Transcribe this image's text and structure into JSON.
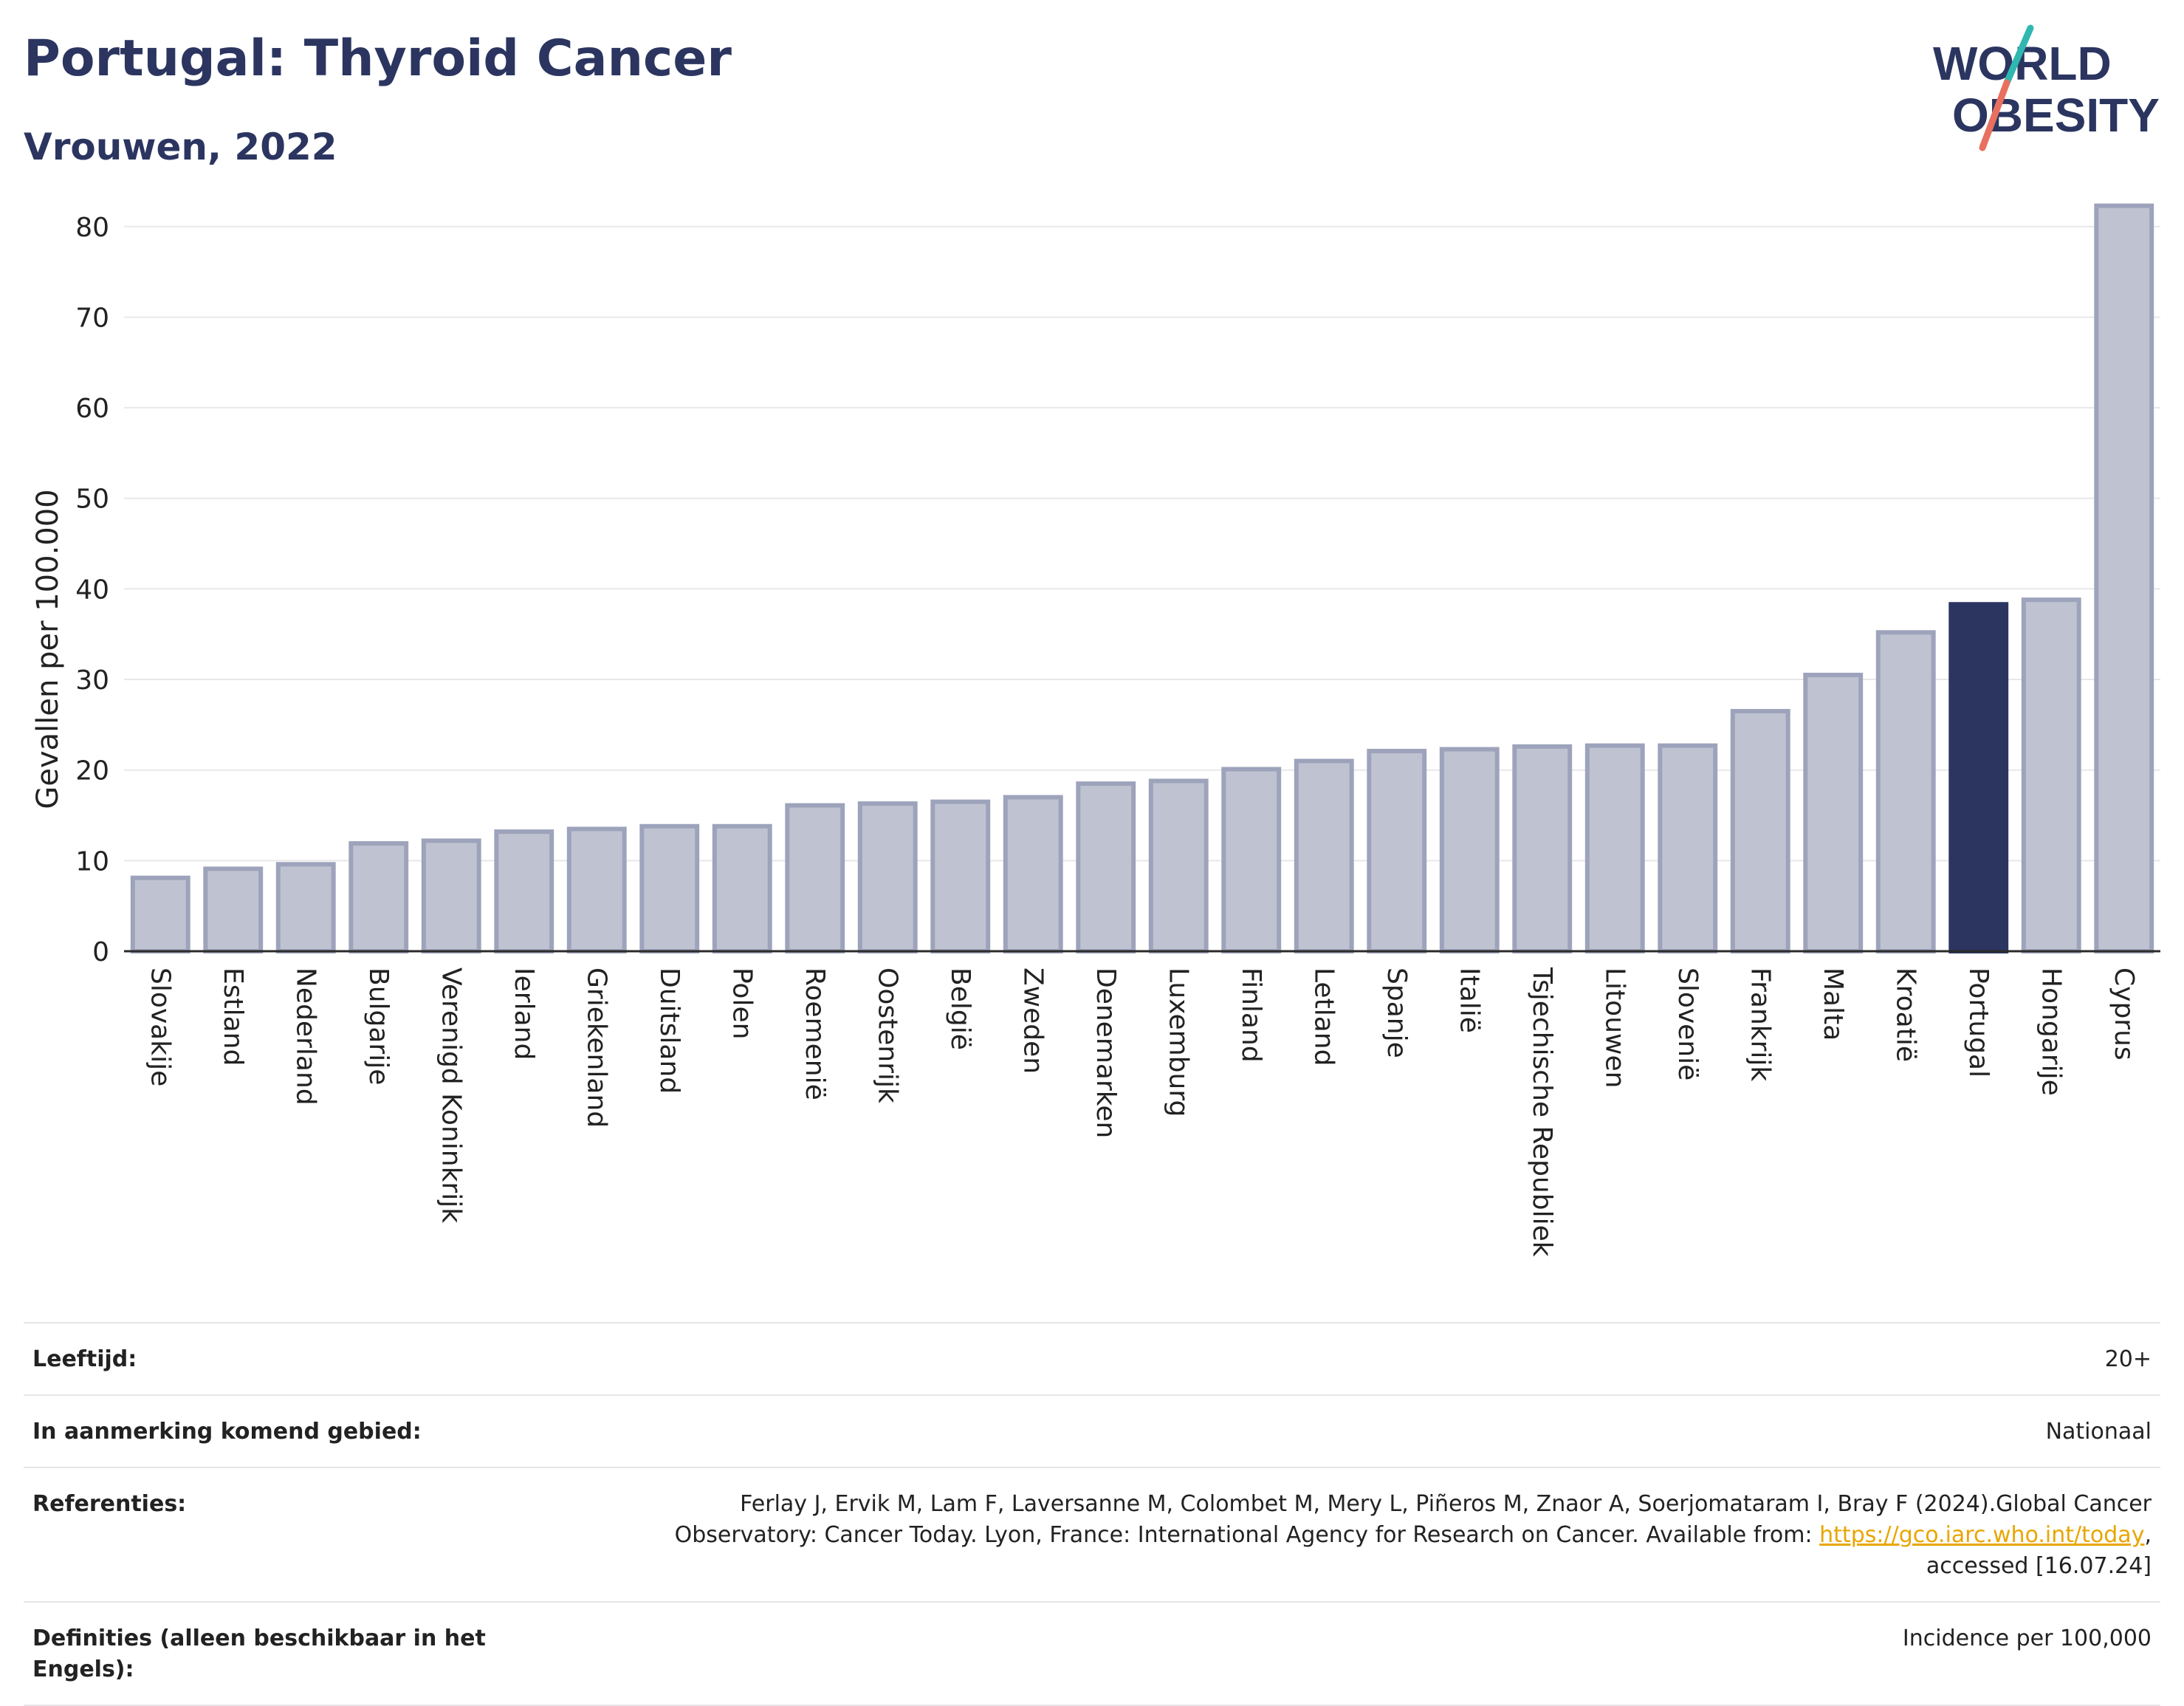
{
  "header": {
    "title": "Portugal: Thyroid Cancer",
    "subtitle": "Vrouwen, 2022",
    "logo_line1": "WORLD",
    "logo_line2": "OBESITY"
  },
  "colors": {
    "bar_default": "#bfc3d1",
    "bar_default_stroke": "#9da3bb",
    "bar_highlight": "#2b3560",
    "title": "#2b3560",
    "link": "#e8a600",
    "logo_teal": "#2fb7b0",
    "logo_red": "#e8705f"
  },
  "chart_data": {
    "type": "bar",
    "ylabel": "Gevallen per 100.000",
    "ylim": [
      0,
      83
    ],
    "yticks": [
      0,
      10,
      20,
      30,
      40,
      50,
      60,
      70,
      80
    ],
    "grid": true,
    "highlight": "Portugal",
    "categories": [
      "Slovakije",
      "Estland",
      "Nederland",
      "Bulgarije",
      "Verenigd Koninkrijk",
      "Ierland",
      "Griekenland",
      "Duitsland",
      "Polen",
      "Roemenië",
      "Oostenrijk",
      "België",
      "Zweden",
      "Denemarken",
      "Luxemburg",
      "Finland",
      "Letland",
      "Spanje",
      "Italië",
      "Tsjechische Republiek",
      "Litouwen",
      "Slovenië",
      "Frankrijk",
      "Malta",
      "Kroatië",
      "Portugal",
      "Hongarije",
      "Cyprus"
    ],
    "values": [
      8.1,
      9.1,
      9.6,
      11.9,
      12.2,
      13.2,
      13.5,
      13.8,
      13.8,
      16.1,
      16.3,
      16.5,
      17.0,
      18.5,
      18.8,
      20.1,
      21.0,
      22.1,
      22.3,
      22.6,
      22.7,
      22.7,
      26.5,
      30.5,
      35.2,
      38.3,
      38.8,
      82.3
    ]
  },
  "info": {
    "age_label": "Leeftijd:",
    "age_value": "20+",
    "area_label": "In aanmerking komend gebied:",
    "area_value": "Nationaal",
    "ref_label": "Referenties:",
    "ref_text_1": "Ferlay J, Ervik M, Lam F, Laversanne M, Colombet M, Mery L, Piñeros M, Znaor A, Soerjomataram I, Bray F (2024).Global Cancer Observatory: Cancer Today. Lyon, France: International Agency for Research on Cancer. Available from: ",
    "ref_link": "https://gco.iarc.who.int/today",
    "ref_text_2": ", accessed [16.07.24]",
    "def_label": "Definities (alleen beschikbaar in het Engels):",
    "def_value": "Incidence per 100,000"
  }
}
